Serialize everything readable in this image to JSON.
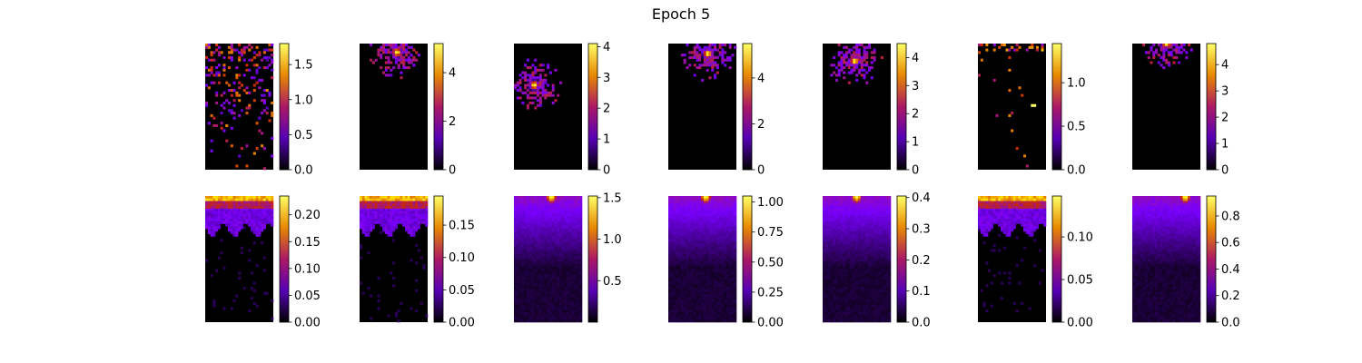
{
  "title": "Epoch 5",
  "colormap": "gnuplot",
  "colormap_stops": [
    "#000000",
    "#7a00ff",
    "#cc2a00",
    "#ffdc00",
    "#ffff66"
  ],
  "chart_data": [
    {
      "type": "heatmap",
      "row": 1,
      "col": 1,
      "pattern": "sparse-top",
      "hotspot": [
        0.6,
        0.1
      ],
      "colorbar": {
        "min": 0,
        "max": 1.8,
        "ticks": [
          "0.0",
          "0.5",
          "1.0",
          "1.5"
        ],
        "tick_values": [
          0,
          0.5,
          1.0,
          1.5
        ]
      }
    },
    {
      "type": "heatmap",
      "row": 1,
      "col": 2,
      "pattern": "blob",
      "hotspot": [
        0.55,
        0.07
      ],
      "colorbar": {
        "min": 0,
        "max": 5.2,
        "ticks": [
          "0",
          "2",
          "4"
        ],
        "tick_values": [
          0,
          2,
          4
        ]
      }
    },
    {
      "type": "heatmap",
      "row": 1,
      "col": 3,
      "pattern": "blob",
      "hotspot": [
        0.3,
        0.33
      ],
      "colorbar": {
        "min": 0,
        "max": 4.1,
        "ticks": [
          "0",
          "1",
          "2",
          "3",
          "4"
        ],
        "tick_values": [
          0,
          1,
          2,
          3,
          4
        ]
      }
    },
    {
      "type": "heatmap",
      "row": 1,
      "col": 4,
      "pattern": "blob",
      "hotspot": [
        0.58,
        0.08
      ],
      "colorbar": {
        "min": 0,
        "max": 5.5,
        "ticks": [
          "0",
          "2",
          "4"
        ],
        "tick_values": [
          0,
          2,
          4
        ]
      }
    },
    {
      "type": "heatmap",
      "row": 1,
      "col": 5,
      "pattern": "blob",
      "hotspot": [
        0.47,
        0.14
      ],
      "colorbar": {
        "min": 0,
        "max": 4.5,
        "ticks": [
          "0",
          "1",
          "2",
          "3",
          "4"
        ],
        "tick_values": [
          0,
          1,
          2,
          3,
          4
        ]
      }
    },
    {
      "type": "heatmap",
      "row": 1,
      "col": 6,
      "pattern": "sparse-spots",
      "hotspot": [
        0.8,
        0.5
      ],
      "colorbar": {
        "min": 0,
        "max": 1.45,
        "ticks": [
          "0.0",
          "0.5",
          "1.0"
        ],
        "tick_values": [
          0,
          0.5,
          1.0
        ]
      }
    },
    {
      "type": "heatmap",
      "row": 1,
      "col": 7,
      "pattern": "blob",
      "hotspot": [
        0.5,
        0.0
      ],
      "colorbar": {
        "min": 0,
        "max": 4.8,
        "ticks": [
          "0",
          "1",
          "2",
          "3",
          "4"
        ],
        "tick_values": [
          0,
          1,
          2,
          3,
          4
        ]
      }
    },
    {
      "type": "heatmap",
      "row": 2,
      "col": 1,
      "pattern": "top-band",
      "hotspot": [
        0.5,
        0.0
      ],
      "colorbar": {
        "min": 0,
        "max": 0.235,
        "ticks": [
          "0.00",
          "0.05",
          "0.10",
          "0.15",
          "0.20"
        ],
        "tick_values": [
          0,
          0.05,
          0.1,
          0.15,
          0.2
        ]
      }
    },
    {
      "type": "heatmap",
      "row": 2,
      "col": 2,
      "pattern": "top-band",
      "hotspot": [
        0.5,
        0.0
      ],
      "colorbar": {
        "min": 0,
        "max": 0.195,
        "ticks": [
          "0.00",
          "0.05",
          "0.10",
          "0.15"
        ],
        "tick_values": [
          0,
          0.05,
          0.1,
          0.15
        ]
      }
    },
    {
      "type": "heatmap",
      "row": 2,
      "col": 3,
      "pattern": "top-center",
      "hotspot": [
        0.55,
        0.0
      ],
      "colorbar": {
        "min": 0,
        "max": 1.52,
        "ticks": [
          "0.5",
          "1.0",
          "1.5"
        ],
        "tick_values": [
          0.5,
          1.0,
          1.5
        ]
      }
    },
    {
      "type": "heatmap",
      "row": 2,
      "col": 4,
      "pattern": "top-center",
      "hotspot": [
        0.55,
        0.0
      ],
      "colorbar": {
        "min": 0,
        "max": 1.05,
        "ticks": [
          "0.00",
          "0.25",
          "0.50",
          "0.75",
          "1.00"
        ],
        "tick_values": [
          0,
          0.25,
          0.5,
          0.75,
          1.0
        ]
      }
    },
    {
      "type": "heatmap",
      "row": 2,
      "col": 5,
      "pattern": "top-center",
      "hotspot": [
        0.5,
        0.0
      ],
      "colorbar": {
        "min": 0,
        "max": 0.405,
        "ticks": [
          "0.0",
          "0.1",
          "0.2",
          "0.3",
          "0.4"
        ],
        "tick_values": [
          0,
          0.1,
          0.2,
          0.3,
          0.4
        ]
      }
    },
    {
      "type": "heatmap",
      "row": 2,
      "col": 6,
      "pattern": "top-band",
      "hotspot": [
        0.5,
        0.0
      ],
      "colorbar": {
        "min": 0,
        "max": 0.148,
        "ticks": [
          "0.00",
          "0.05",
          "0.10"
        ],
        "tick_values": [
          0,
          0.05,
          0.1
        ]
      }
    },
    {
      "type": "heatmap",
      "row": 2,
      "col": 7,
      "pattern": "top-center",
      "hotspot": [
        0.78,
        0.0
      ],
      "colorbar": {
        "min": 0,
        "max": 0.95,
        "ticks": [
          "0.0",
          "0.2",
          "0.4",
          "0.6",
          "0.8"
        ],
        "tick_values": [
          0,
          0.2,
          0.4,
          0.6,
          0.8
        ]
      }
    }
  ]
}
